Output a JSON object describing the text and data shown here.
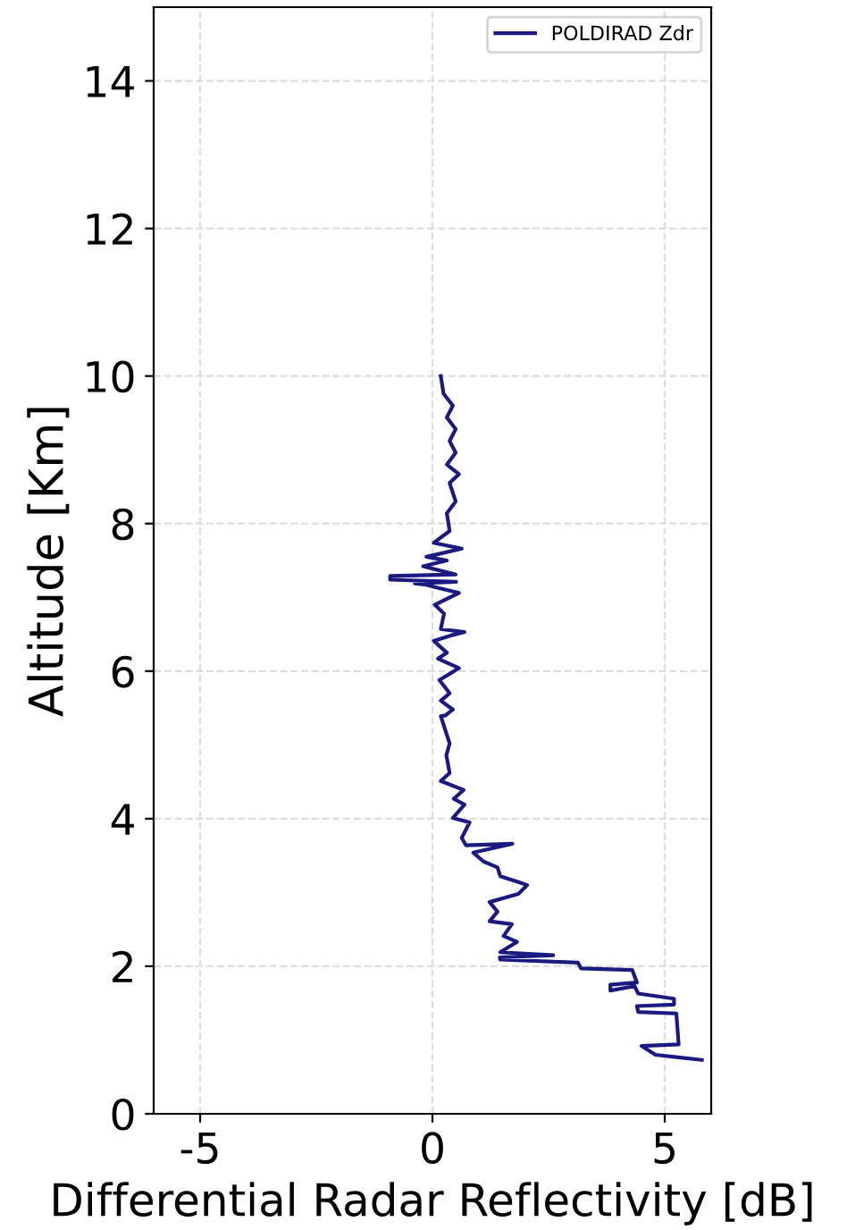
{
  "chart_data": {
    "type": "line",
    "xlabel": "Differential Radar Reflectivity [dB]",
    "ylabel": "Altitude [Km]",
    "xlim": [
      -6,
      6
    ],
    "ylim": [
      0,
      15
    ],
    "xticks": [
      -5,
      0,
      5
    ],
    "yticks": [
      0,
      2,
      4,
      6,
      8,
      10,
      12,
      14
    ],
    "grid": true,
    "legend": "top right",
    "marker": "none",
    "line_style": "solid",
    "series": [
      {
        "name": "POLDIRAD Zdr",
        "color": "#1a1a80",
        "x": [
          5.8,
          4.8,
          4.5,
          5.3,
          5.25,
          4.43,
          4.4,
          5.2,
          5.2,
          4.43,
          4.35,
          3.83,
          3.83,
          4.4,
          4.3,
          3.2,
          3.13,
          1.46,
          1.45,
          2.6,
          1.46,
          1.82,
          1.53,
          1.71,
          1.23,
          1.4,
          1.23,
          1.85,
          2.04,
          1.85,
          1.46,
          1.4,
          1.1,
          0.88,
          1.72,
          0.72,
          0.63,
          0.8,
          0.44,
          0.69,
          0.46,
          0.67,
          0.18,
          0.37,
          0.3,
          0.37,
          0.18,
          0.28,
          0.44,
          0.18,
          0.37,
          0.15,
          0.57,
          0.12,
          0.31,
          0.03,
          0.44,
          0.69,
          0.18,
          0.25,
          0.05,
          0.57,
          0.05,
          -0.13,
          -0.38,
          0.51,
          -0.91,
          -0.91,
          0.5,
          -0.2,
          0.31,
          -0.13,
          0.63,
          0.03,
          0.37,
          0.31,
          0.5,
          0.37,
          0.57,
          0.31,
          0.5,
          0.37,
          0.5,
          0.31,
          0.44,
          0.24,
          0.18
        ],
        "values": [
          0.73,
          0.8,
          0.92,
          0.94,
          1.36,
          1.38,
          1.46,
          1.48,
          1.56,
          1.63,
          1.73,
          1.67,
          1.75,
          1.78,
          1.95,
          1.97,
          2.05,
          2.09,
          2.12,
          2.15,
          2.19,
          2.33,
          2.41,
          2.57,
          2.61,
          2.74,
          2.87,
          2.98,
          3.1,
          3.14,
          3.22,
          3.34,
          3.42,
          3.54,
          3.66,
          3.64,
          3.74,
          3.95,
          4.01,
          4.19,
          4.27,
          4.39,
          4.51,
          4.62,
          4.86,
          5.02,
          5.39,
          5.4,
          5.48,
          5.6,
          5.7,
          5.88,
          6.04,
          6.17,
          6.25,
          6.41,
          6.49,
          6.53,
          6.57,
          6.78,
          6.9,
          7.06,
          7.14,
          7.17,
          7.19,
          7.21,
          7.24,
          7.29,
          7.31,
          7.42,
          7.5,
          7.55,
          7.66,
          7.74,
          7.9,
          8.14,
          8.3,
          8.55,
          8.67,
          8.8,
          8.96,
          9.12,
          9.28,
          9.44,
          9.6,
          9.76,
          10.0
        ]
      }
    ]
  }
}
